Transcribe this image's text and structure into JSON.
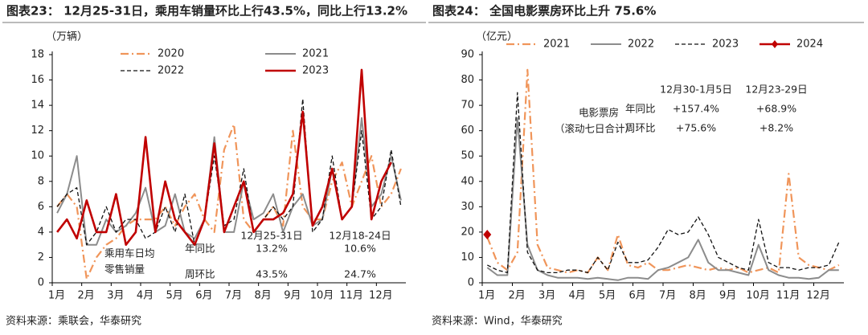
{
  "chart_data": [
    {
      "type": "line",
      "title": "图表23：  12月25-31日，乘用车销量环比上行43.5%，同比上行13.2%",
      "y_label": "（万辆）",
      "source": "资料来源：乘联会，华泰研究",
      "categories": [
        "1月",
        null,
        null,
        "2月",
        null,
        null,
        "3月",
        null,
        null,
        "4月",
        null,
        null,
        "5月",
        null,
        null,
        "6月",
        null,
        null,
        "7月",
        null,
        null,
        "8月",
        null,
        null,
        "9月",
        null,
        null,
        "10月",
        null,
        null,
        "11月",
        null,
        null,
        "12月",
        null,
        null
      ],
      "ylim": [
        0,
        18
      ],
      "yticks": [
        0,
        2,
        4,
        6,
        8,
        10,
        12,
        14,
        16,
        18
      ],
      "legend": "top-left",
      "series": [
        {
          "name": "2020",
          "color": "#f0955a",
          "style": "dashdot",
          "values": [
            6,
            7,
            6,
            0.3,
            2,
            3,
            3.5,
            4.5,
            5,
            5,
            5,
            6,
            4.5,
            6,
            7,
            5,
            4,
            10.5,
            12.5,
            5,
            4,
            5,
            6,
            4.5,
            12,
            6,
            5,
            5,
            8,
            9.5,
            6,
            8,
            10,
            6,
            7,
            9
          ]
        },
        {
          "name": "2021",
          "color": "#8c8c8c",
          "style": "solid",
          "values": [
            5.5,
            7,
            10,
            3,
            3,
            5,
            4,
            4.5,
            5.5,
            7.5,
            4,
            4.5,
            7,
            4,
            3.5,
            5,
            11.5,
            4,
            4,
            8,
            5,
            5.5,
            7,
            4,
            6,
            7,
            4.5,
            5,
            9,
            5,
            6,
            13,
            6,
            7,
            10,
            6.5
          ]
        },
        {
          "name": "2022",
          "color": "#111111",
          "style": "dashed",
          "values": [
            6,
            7,
            7.5,
            3,
            4,
            6,
            4,
            5,
            5,
            3.5,
            4,
            6,
            4,
            7,
            3,
            5,
            10,
            4.5,
            5,
            9,
            4,
            5,
            6,
            5,
            6,
            14.5,
            4,
            5,
            10,
            5,
            6,
            12,
            5,
            6,
            10.5,
            6
          ]
        },
        {
          "name": "2023",
          "color": "#c00000",
          "style": "bold",
          "values": [
            4,
            5,
            3.5,
            6.5,
            4,
            4,
            7,
            3,
            4,
            11.5,
            4,
            8,
            5,
            4,
            3,
            5,
            11,
            4,
            6,
            8,
            4,
            5,
            5,
            5.5,
            7,
            13.5,
            4.5,
            6,
            9,
            5,
            6,
            16.8,
            5,
            8,
            9.5,
            null
          ]
        }
      ],
      "annotations": [
        "乘用车日均",
        "零售销量",
        "年同比",
        "周环比",
        "12月25-31日",
        "12月18-24日",
        "13.2%",
        "10.6%",
        "43.5%",
        "24.7%"
      ]
    },
    {
      "type": "line",
      "title": "图表24：  全国电影票房环比上升 75.6%",
      "y_label": "（亿元）",
      "source": "资料来源：Wind，华泰研究",
      "categories": [
        "1月",
        null,
        null,
        "2月",
        null,
        null,
        "3月",
        null,
        null,
        "4月",
        null,
        null,
        "5月",
        null,
        null,
        "6月",
        null,
        null,
        "7月",
        null,
        null,
        "8月",
        null,
        null,
        "9月",
        null,
        null,
        "10月",
        null,
        null,
        "11月",
        null,
        null,
        "12月",
        null,
        null
      ],
      "ylim": [
        0,
        90
      ],
      "yticks": [
        0,
        10,
        20,
        30,
        40,
        50,
        60,
        70,
        80,
        90
      ],
      "legend": "top",
      "series": [
        {
          "name": "2021",
          "color": "#f0955a",
          "style": "dashdot",
          "values": [
            18,
            8,
            5,
            12,
            84,
            15,
            6,
            5,
            4,
            5,
            4,
            10,
            5,
            19,
            7,
            6,
            8,
            5,
            5,
            6,
            7,
            6,
            5,
            6,
            5,
            6,
            4,
            5,
            6,
            4,
            43,
            10,
            7,
            6,
            5,
            7
          ]
        },
        {
          "name": "2022",
          "color": "#8c8c8c",
          "style": "solid",
          "values": [
            6,
            3,
            3,
            65,
            15,
            5,
            3,
            2,
            2,
            2,
            1.5,
            2,
            1.5,
            1,
            2,
            2,
            1.5,
            5,
            6,
            8,
            10,
            17,
            8,
            5,
            5,
            4,
            3,
            15,
            5,
            3,
            2,
            2,
            1.5,
            2,
            5,
            5
          ]
        },
        {
          "name": "2023",
          "color": "#111111",
          "style": "dashed",
          "values": [
            7,
            5,
            4,
            75,
            12,
            5,
            4,
            4,
            5,
            5,
            4,
            10,
            5,
            16,
            8,
            8,
            9,
            14,
            21,
            19,
            20,
            26,
            19,
            10,
            8,
            6,
            5,
            25,
            8,
            6,
            6,
            5,
            6,
            6,
            7,
            16
          ]
        },
        {
          "name": "2024",
          "color": "#c00000",
          "style": "marker",
          "values": [
            19,
            null,
            null,
            null,
            null,
            null,
            null,
            null,
            null,
            null,
            null,
            null,
            null,
            null,
            null,
            null,
            null,
            null,
            null,
            null,
            null,
            null,
            null,
            null,
            null,
            null,
            null,
            null,
            null,
            null,
            null,
            null,
            null,
            null,
            null,
            null
          ]
        }
      ],
      "annotations": [
        "电影票房",
        "（滚动七日合计）",
        "年同比",
        "周环比",
        "12月30-1月5日",
        "12月23-29日",
        "+157.4%",
        "+75.6%",
        "+68.9%",
        "+8.2%"
      ]
    }
  ]
}
